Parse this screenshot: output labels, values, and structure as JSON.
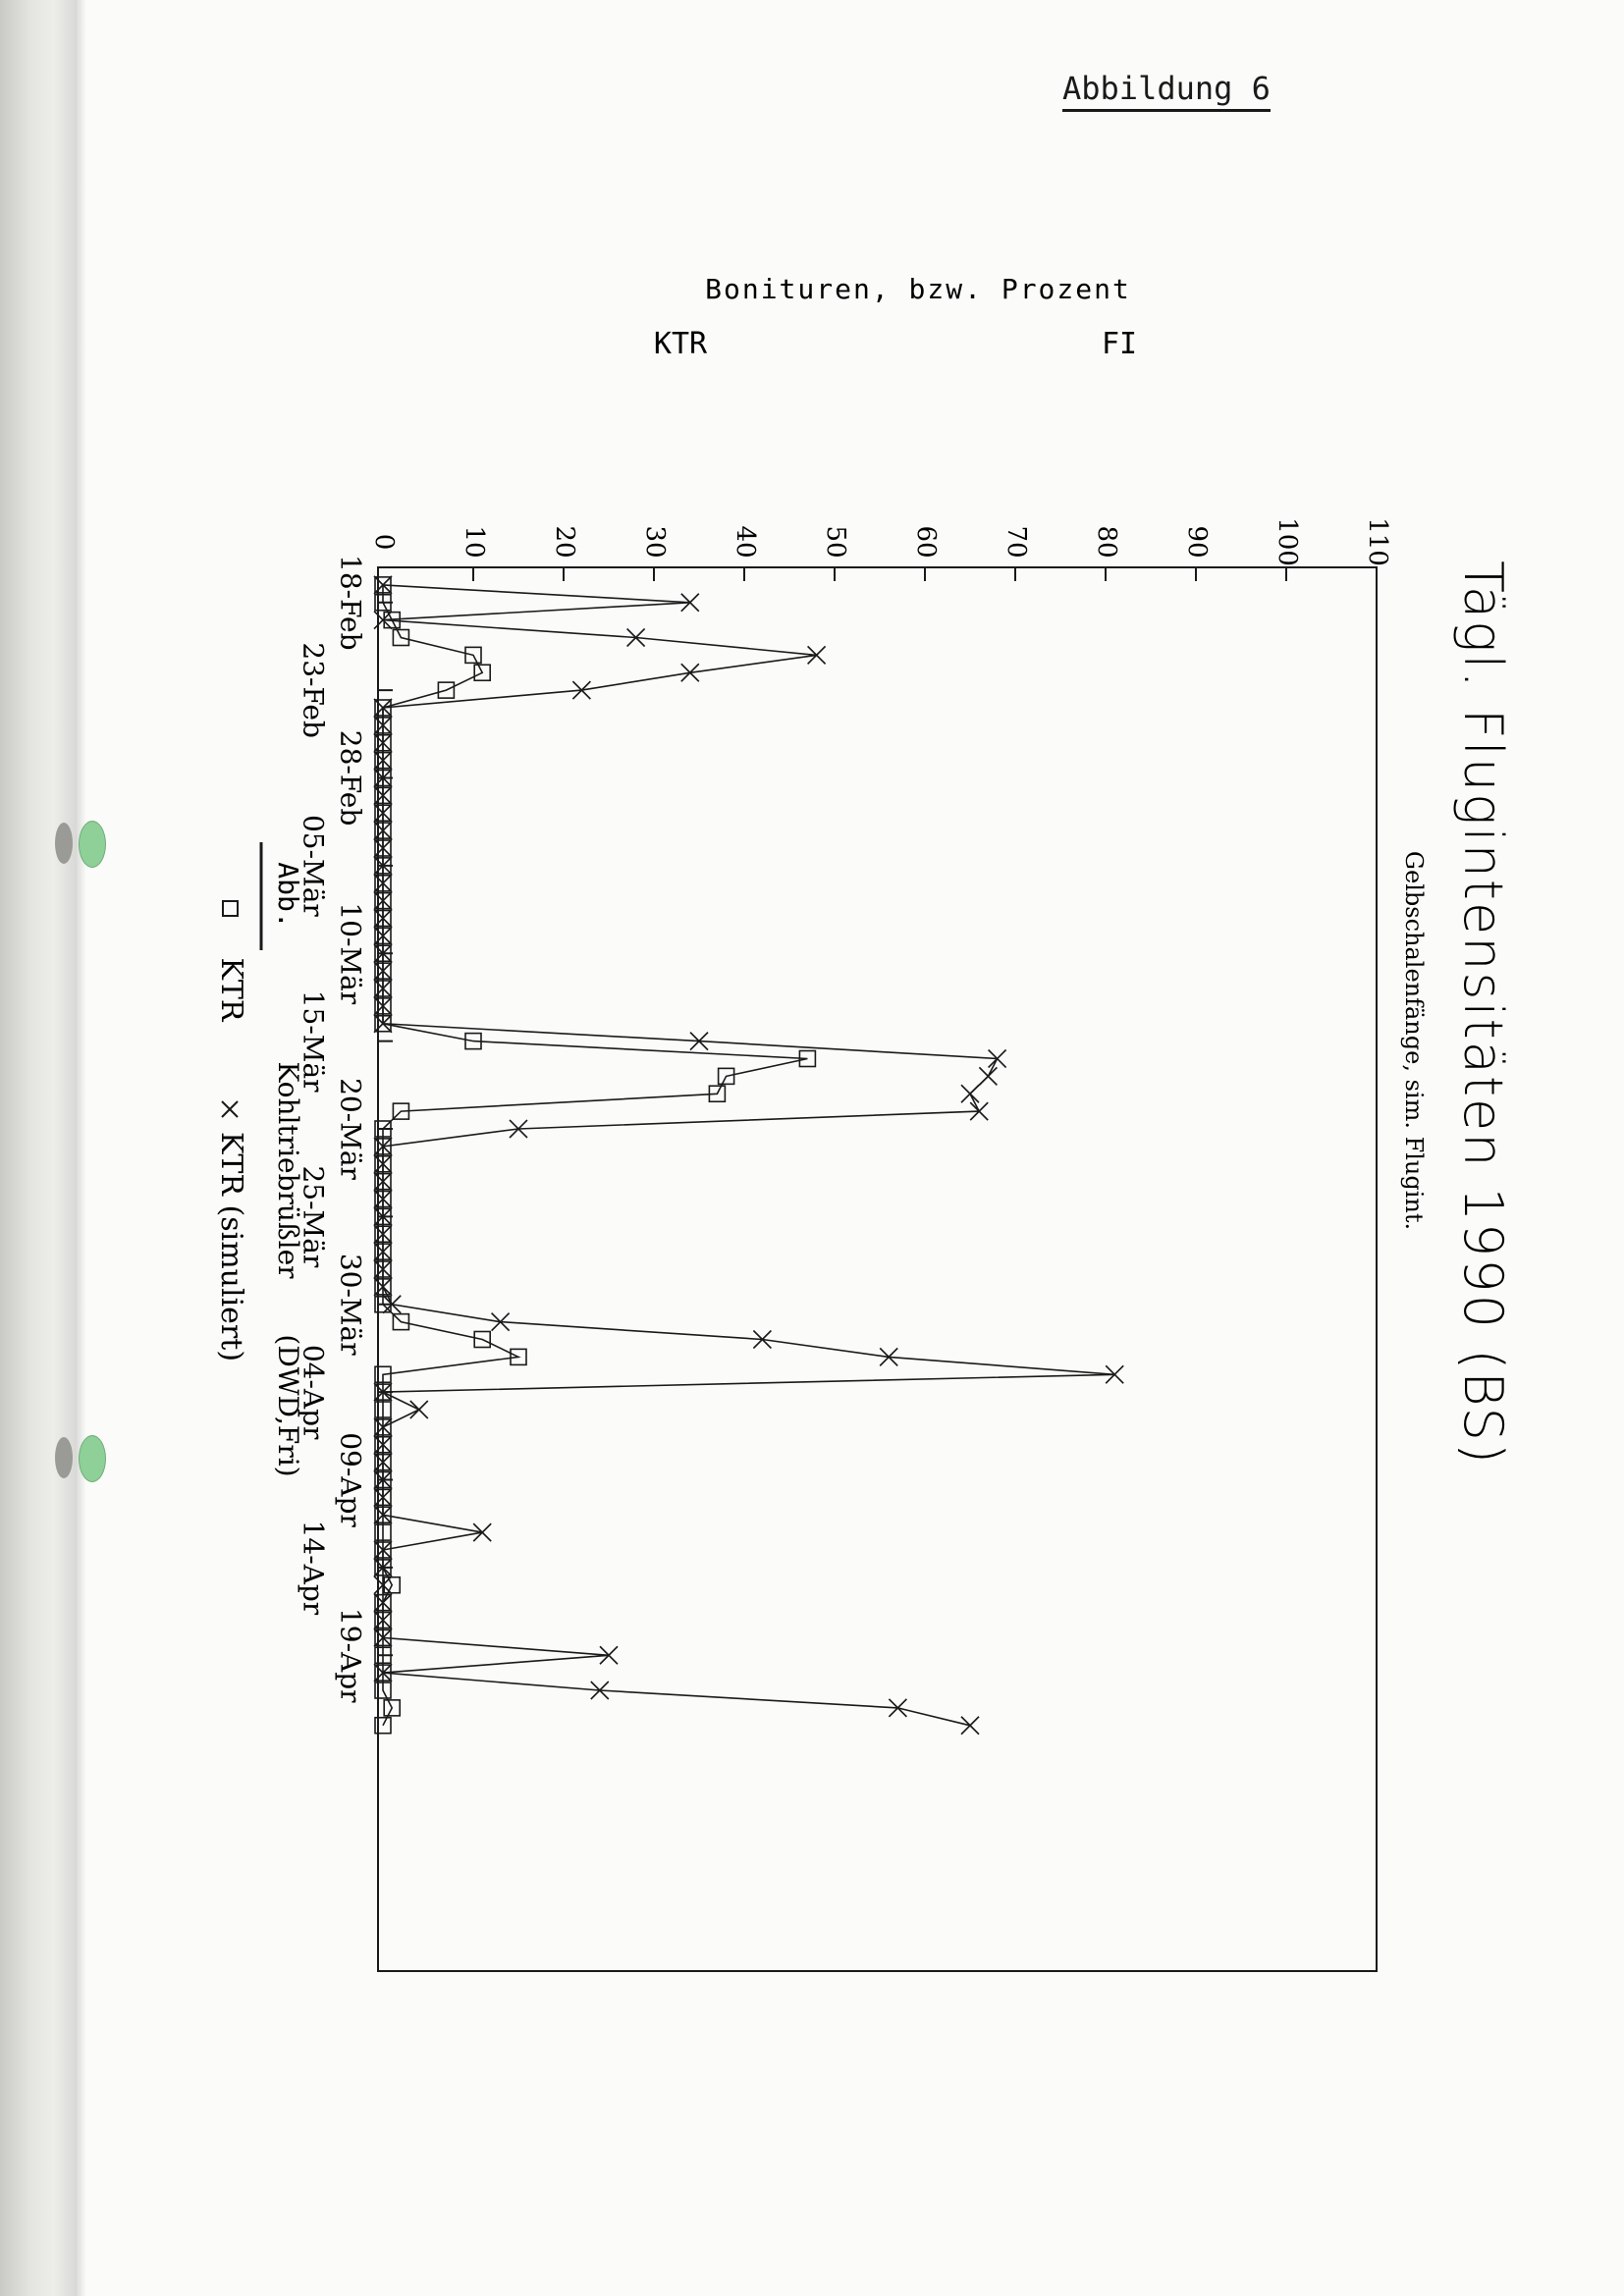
{
  "page": {
    "heading": "Abbildung 6"
  },
  "chart_data": {
    "type": "line",
    "title": "Tägl. Flugintensitäten 1990 (BS)",
    "subtitle": "Gelbschalenfänge, sim. Flugint.",
    "ylabel": "Bonituren, bzw. Prozent",
    "ylabel_left": "KTR",
    "ylabel_right": "FI",
    "xlabel_prefix": "Abb.",
    "xlabel": "Kohltriebrüßler",
    "xlabel_source": "(DWD,Fri)",
    "ylim": [
      0,
      110
    ],
    "yticks": [
      "0",
      "10",
      "20",
      "30",
      "40",
      "50",
      "60",
      "70",
      "80",
      "90",
      "100",
      "110"
    ],
    "x_start": "1990-02-16",
    "x_end": "1990-05-07",
    "xticks": [
      {
        "date": "1990-02-18",
        "label": "18-Feb"
      },
      {
        "date": "1990-02-23",
        "label": "23-Feb"
      },
      {
        "date": "1990-02-28",
        "label": "28-Feb"
      },
      {
        "date": "1990-03-05",
        "label": "05-Mär"
      },
      {
        "date": "1990-03-10",
        "label": "10-Mär"
      },
      {
        "date": "1990-03-15",
        "label": "15-Mär"
      },
      {
        "date": "1990-03-20",
        "label": "20-Mär"
      },
      {
        "date": "1990-03-25",
        "label": "25-Mär"
      },
      {
        "date": "1990-03-30",
        "label": "30-Mär"
      },
      {
        "date": "1990-04-04",
        "label": "04-Apr"
      },
      {
        "date": "1990-04-09",
        "label": "09-Apr"
      },
      {
        "date": "1990-04-14",
        "label": "14-Apr"
      },
      {
        "date": "1990-04-19",
        "label": "19-Apr"
      }
    ],
    "legend": [
      {
        "symbol": "□",
        "name": "KTR"
      },
      {
        "symbol": "×",
        "name": "KTR (simuliert)"
      }
    ],
    "series": [
      {
        "name": "KTR",
        "marker": "square",
        "points": [
          [
            "1990-02-17",
            0
          ],
          [
            "1990-02-18",
            0
          ],
          [
            "1990-02-19",
            1
          ],
          [
            "1990-02-20",
            2
          ],
          [
            "1990-02-21",
            10
          ],
          [
            "1990-02-22",
            11
          ],
          [
            "1990-02-23",
            7
          ],
          [
            "1990-02-24",
            0
          ],
          [
            "1990-02-25",
            0
          ],
          [
            "1990-02-26",
            0
          ],
          [
            "1990-02-27",
            0
          ],
          [
            "1990-02-28",
            0
          ],
          [
            "1990-03-01",
            0
          ],
          [
            "1990-03-02",
            0
          ],
          [
            "1990-03-03",
            0
          ],
          [
            "1990-03-04",
            0
          ],
          [
            "1990-03-05",
            0
          ],
          [
            "1990-03-06",
            0
          ],
          [
            "1990-03-07",
            0
          ],
          [
            "1990-03-08",
            0
          ],
          [
            "1990-03-09",
            0
          ],
          [
            "1990-03-10",
            0
          ],
          [
            "1990-03-11",
            0
          ],
          [
            "1990-03-12",
            0
          ],
          [
            "1990-03-13",
            0
          ],
          [
            "1990-03-14",
            0
          ],
          [
            "1990-03-15",
            10
          ],
          [
            "1990-03-16",
            47
          ],
          [
            "1990-03-17",
            38
          ],
          [
            "1990-03-18",
            37
          ],
          [
            "1990-03-19",
            2
          ],
          [
            "1990-03-20",
            0
          ],
          [
            "1990-03-21",
            0
          ],
          [
            "1990-03-22",
            0
          ],
          [
            "1990-03-23",
            0
          ],
          [
            "1990-03-24",
            0
          ],
          [
            "1990-03-25",
            0
          ],
          [
            "1990-03-26",
            0
          ],
          [
            "1990-03-27",
            0
          ],
          [
            "1990-03-28",
            0
          ],
          [
            "1990-03-29",
            0
          ],
          [
            "1990-03-30",
            0
          ],
          [
            "1990-03-31",
            2
          ],
          [
            "1990-04-01",
            11
          ],
          [
            "1990-04-02",
            15
          ],
          [
            "1990-04-03",
            0
          ],
          [
            "1990-04-04",
            0
          ],
          [
            "1990-04-05",
            0
          ],
          [
            "1990-04-06",
            0
          ],
          [
            "1990-04-07",
            0
          ],
          [
            "1990-04-08",
            0
          ],
          [
            "1990-04-09",
            0
          ],
          [
            "1990-04-10",
            0
          ],
          [
            "1990-04-11",
            0
          ],
          [
            "1990-04-12",
            0
          ],
          [
            "1990-04-13",
            0
          ],
          [
            "1990-04-14",
            0
          ],
          [
            "1990-04-15",
            1
          ],
          [
            "1990-04-16",
            0
          ],
          [
            "1990-04-17",
            0
          ],
          [
            "1990-04-18",
            0
          ],
          [
            "1990-04-19",
            0
          ],
          [
            "1990-04-20",
            0
          ],
          [
            "1990-04-21",
            0
          ],
          [
            "1990-04-22",
            1
          ],
          [
            "1990-04-23",
            0
          ]
        ]
      },
      {
        "name": "KTR (simuliert)",
        "marker": "x",
        "points": [
          [
            "1990-02-17",
            0
          ],
          [
            "1990-02-18",
            34
          ],
          [
            "1990-02-19",
            0
          ],
          [
            "1990-02-20",
            28
          ],
          [
            "1990-02-21",
            48
          ],
          [
            "1990-02-22",
            34
          ],
          [
            "1990-02-23",
            22
          ],
          [
            "1990-02-24",
            0
          ],
          [
            "1990-02-25",
            0
          ],
          [
            "1990-02-26",
            0
          ],
          [
            "1990-02-27",
            0
          ],
          [
            "1990-02-28",
            0
          ],
          [
            "1990-03-01",
            0
          ],
          [
            "1990-03-02",
            0
          ],
          [
            "1990-03-03",
            0
          ],
          [
            "1990-03-04",
            0
          ],
          [
            "1990-03-05",
            0
          ],
          [
            "1990-03-06",
            0
          ],
          [
            "1990-03-07",
            0
          ],
          [
            "1990-03-08",
            0
          ],
          [
            "1990-03-09",
            0
          ],
          [
            "1990-03-10",
            0
          ],
          [
            "1990-03-11",
            0
          ],
          [
            "1990-03-12",
            0
          ],
          [
            "1990-03-13",
            0
          ],
          [
            "1990-03-14",
            0
          ],
          [
            "1990-03-15",
            35
          ],
          [
            "1990-03-16",
            68
          ],
          [
            "1990-03-17",
            67
          ],
          [
            "1990-03-18",
            65
          ],
          [
            "1990-03-19",
            66
          ],
          [
            "1990-03-20",
            15
          ],
          [
            "1990-03-21",
            0
          ],
          [
            "1990-03-22",
            0
          ],
          [
            "1990-03-23",
            0
          ],
          [
            "1990-03-24",
            0
          ],
          [
            "1990-03-25",
            0
          ],
          [
            "1990-03-26",
            0
          ],
          [
            "1990-03-27",
            0
          ],
          [
            "1990-03-28",
            0
          ],
          [
            "1990-03-29",
            0
          ],
          [
            "1990-03-30",
            1
          ],
          [
            "1990-03-31",
            13
          ],
          [
            "1990-04-01",
            42
          ],
          [
            "1990-04-02",
            56
          ],
          [
            "1990-04-03",
            81
          ],
          [
            "1990-04-04",
            0
          ],
          [
            "1990-04-05",
            4
          ],
          [
            "1990-04-06",
            0
          ],
          [
            "1990-04-07",
            0
          ],
          [
            "1990-04-08",
            0
          ],
          [
            "1990-04-09",
            0
          ],
          [
            "1990-04-10",
            0
          ],
          [
            "1990-04-11",
            0
          ],
          [
            "1990-04-12",
            11
          ],
          [
            "1990-04-13",
            0
          ],
          [
            "1990-04-14",
            0
          ],
          [
            "1990-04-15",
            0
          ],
          [
            "1990-04-16",
            0
          ],
          [
            "1990-04-17",
            0
          ],
          [
            "1990-04-18",
            0
          ],
          [
            "1990-04-19",
            25
          ],
          [
            "1990-04-20",
            0
          ],
          [
            "1990-04-21",
            24
          ],
          [
            "1990-04-22",
            57
          ],
          [
            "1990-04-23",
            65
          ]
        ]
      }
    ]
  }
}
